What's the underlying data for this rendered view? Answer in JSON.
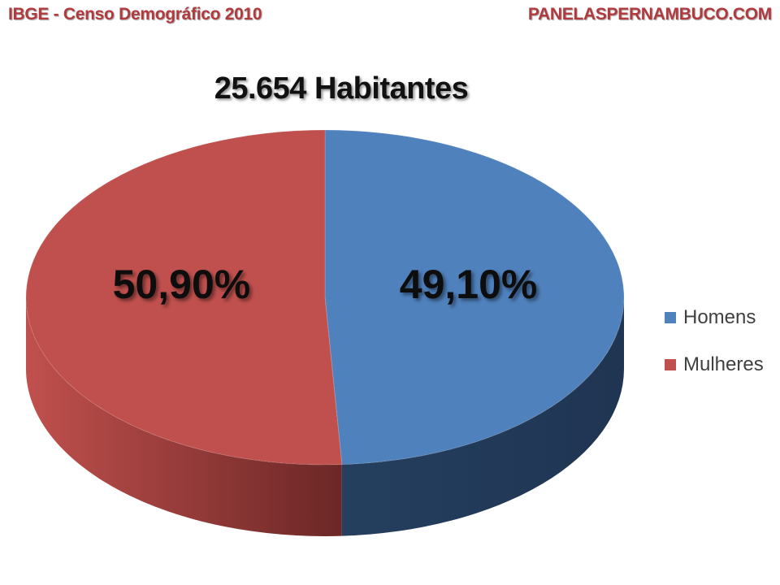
{
  "header": {
    "left": "IBGE - Censo Demográfico 2010",
    "right": "PANELASPERNAMBUCO.COM"
  },
  "chart_data": {
    "type": "pie",
    "title": "25.654 Habitantes",
    "style": "3d-pie",
    "legend_position": "right",
    "slices": [
      {
        "name": "Homens",
        "value": 49.1,
        "label": "49,10%",
        "color": "#4f81bd",
        "side_color": "#253f5f"
      },
      {
        "name": "Mulheres",
        "value": 50.9,
        "label": "50,90%",
        "color": "#c0504d",
        "side_color": "#6b2726"
      }
    ]
  }
}
